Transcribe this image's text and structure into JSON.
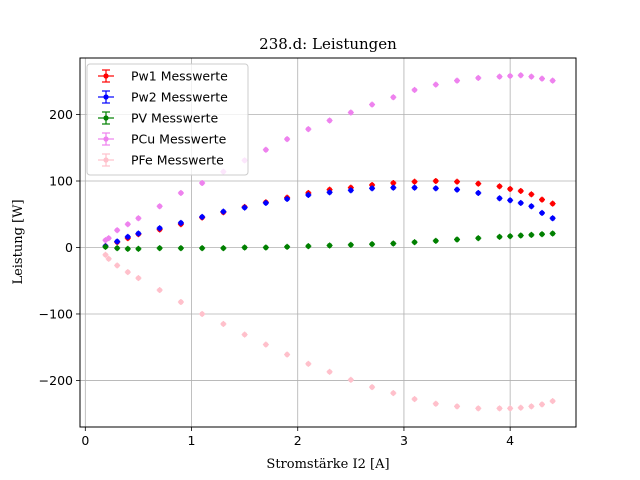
{
  "chart_data": {
    "type": "scatter",
    "title": "238.d: Leistungen",
    "xlabel": "Stromstärke I2 [A]",
    "ylabel": "Leistung [W]",
    "xlim": [
      -0.05,
      4.62
    ],
    "ylim": [
      -270,
      285
    ],
    "xticks": [
      0,
      1,
      2,
      3,
      4
    ],
    "yticks": [
      -200,
      -100,
      0,
      100,
      200
    ],
    "grid": true,
    "legend_position": "top-left",
    "series": [
      {
        "name": "Pw1 Messwerte",
        "color": "#ff0000",
        "marker": "circle",
        "x": [
          0.19,
          0.3,
          0.4,
          0.5,
          0.7,
          0.9,
          1.1,
          1.3,
          1.5,
          1.7,
          1.9,
          2.1,
          2.3,
          2.5,
          2.7,
          2.9,
          3.1,
          3.3,
          3.5,
          3.7,
          3.9,
          4.0,
          4.1,
          4.2,
          4.3,
          4.4
        ],
        "y": [
          2,
          8,
          14,
          20,
          27,
          35,
          45,
          53,
          61,
          68,
          75,
          82,
          87,
          90,
          94,
          97,
          99,
          100,
          99,
          96,
          92,
          88,
          85,
          80,
          72,
          66
        ]
      },
      {
        "name": "Pw2 Messwerte",
        "color": "#0000ff",
        "marker": "circle",
        "x": [
          0.19,
          0.3,
          0.4,
          0.5,
          0.7,
          0.9,
          1.1,
          1.3,
          1.5,
          1.7,
          1.9,
          2.1,
          2.3,
          2.5,
          2.7,
          2.9,
          3.1,
          3.3,
          3.5,
          3.7,
          3.9,
          4.0,
          4.1,
          4.2,
          4.3,
          4.4
        ],
        "y": [
          2,
          9,
          16,
          21,
          29,
          37,
          46,
          54,
          60,
          67,
          73,
          79,
          83,
          86,
          89,
          90,
          90,
          89,
          87,
          82,
          74,
          71,
          67,
          62,
          52,
          44
        ]
      },
      {
        "name": "PV Messwerte",
        "color": "#008000",
        "marker": "circle",
        "x": [
          0.19,
          0.3,
          0.4,
          0.5,
          0.7,
          0.9,
          1.1,
          1.3,
          1.5,
          1.7,
          1.9,
          2.1,
          2.3,
          2.5,
          2.7,
          2.9,
          3.1,
          3.3,
          3.5,
          3.7,
          3.9,
          4.0,
          4.1,
          4.2,
          4.3,
          4.4
        ],
        "y": [
          1,
          -1,
          -2,
          -2,
          -1,
          -1,
          -1,
          -1,
          0,
          0,
          1,
          2,
          3,
          4,
          5,
          6,
          8,
          10,
          12,
          14,
          16,
          17,
          18,
          19,
          20,
          21
        ]
      },
      {
        "name": "PCu Messwerte",
        "color": "#ee82ee",
        "marker": "circle",
        "x": [
          0.19,
          0.22,
          0.3,
          0.4,
          0.5,
          0.7,
          0.9,
          1.1,
          1.3,
          1.5,
          1.7,
          1.9,
          2.1,
          2.3,
          2.5,
          2.7,
          2.9,
          3.1,
          3.3,
          3.5,
          3.7,
          3.9,
          4.0,
          4.1,
          4.2,
          4.3,
          4.4
        ],
        "y": [
          11,
          14,
          26,
          35,
          44,
          62,
          82,
          97,
          114,
          131,
          147,
          163,
          178,
          191,
          203,
          215,
          226,
          237,
          245,
          251,
          255,
          257,
          258,
          259,
          257,
          254,
          251
        ]
      },
      {
        "name": "PFe Messwerte",
        "color": "#ffc0cb",
        "marker": "circle",
        "x": [
          0.19,
          0.22,
          0.3,
          0.4,
          0.5,
          0.7,
          0.9,
          1.1,
          1.3,
          1.5,
          1.7,
          1.9,
          2.1,
          2.3,
          2.5,
          2.7,
          2.9,
          3.1,
          3.3,
          3.5,
          3.7,
          3.9,
          4.0,
          4.1,
          4.2,
          4.3,
          4.4
        ],
        "y": [
          -11,
          -17,
          -27,
          -37,
          -46,
          -64,
          -82,
          -100,
          -115,
          -131,
          -146,
          -161,
          -175,
          -187,
          -199,
          -210,
          -219,
          -228,
          -235,
          -239,
          -242,
          -242,
          -242,
          -241,
          -239,
          -236,
          -231
        ]
      }
    ]
  }
}
